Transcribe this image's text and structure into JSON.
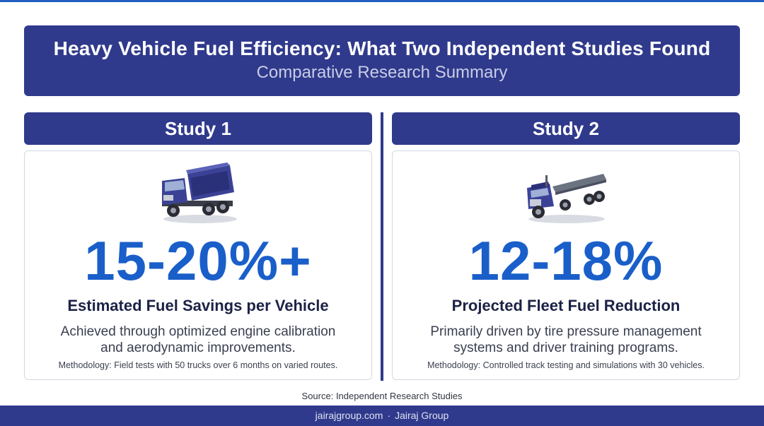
{
  "header": {
    "title": "Heavy Vehicle Fuel Efficiency: What Two Independent Studies Found",
    "subtitle": "Comparative Research Summary"
  },
  "studies": [
    {
      "heading": "Study 1",
      "icon": "dump-truck-icon",
      "stat": "15-20%+",
      "stat_label": "Estimated Fuel Savings per Vehicle",
      "description": "Achieved through optimized engine calibration and aerodynamic improvements.",
      "methodology": "Methodology: Field tests with 50 trucks over 6 months on varied routes."
    },
    {
      "heading": "Study 2",
      "icon": "flatbed-truck-icon",
      "stat": "12-18%",
      "stat_label": "Projected Fleet Fuel Reduction",
      "description": "Primarily driven by tire pressure management systems and driver training programs.",
      "methodology": "Methodology: Controlled track testing and simulations with 30 vehicles."
    }
  ],
  "source": "Source: Independent Research Studies",
  "footer": {
    "site": "jairajgroup.com",
    "separator": "·",
    "company": "Jairaj Group"
  },
  "colors": {
    "navy": "#303a8c",
    "stat_blue": "#1a5fc9"
  }
}
